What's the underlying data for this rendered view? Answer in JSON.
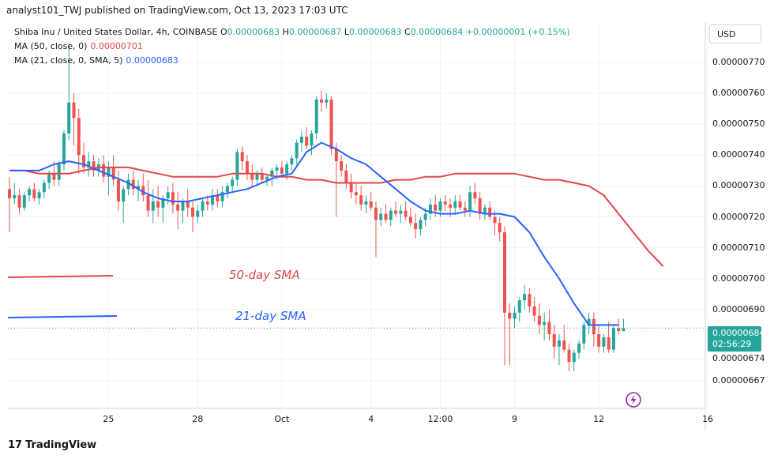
{
  "header": {
    "publish_line": "analyst101_TWJ published on TradingView.com, Oct 13, 2023 17:03 UTC"
  },
  "legend": {
    "symbol": "Shiba Inu / United States Dollar, 4h, COINBASE",
    "open_key": "O",
    "open_val": "0.00000683",
    "high_key": "H",
    "high_val": "0.00000687",
    "low_key": "L",
    "low_val": "0.00000683",
    "close_key": "C",
    "close_val": "0.00000684",
    "change": "+0.00000001 (+0.15%)",
    "ma50_label": "MA (50, close, 0)",
    "ma50_value": "0.00000701",
    "ma21_label": "MA (21, close, 0, SMA, 5)",
    "ma21_value": "0.00000683"
  },
  "currency_button": "USD",
  "last_price": {
    "price": "0.00000684",
    "countdown": "02:56:29"
  },
  "annotations": {
    "ma50": "50-day SMA",
    "ma21": "21-day SMA"
  },
  "footer": {
    "brand": "TradingView",
    "logo_mark": "17"
  },
  "colors": {
    "up": "#26a69a",
    "down": "#ef5350",
    "ma50": "#e0474c",
    "ma21": "#2962ff",
    "grid": "#f0f3fa"
  },
  "chart_data": {
    "type": "candlestick",
    "title": "Shiba Inu / United States Dollar, 4h, COINBASE",
    "y_ticks": [
      "0.00000770",
      "0.00000760",
      "0.00000750",
      "0.00000740",
      "0.00000730",
      "0.00000720",
      "0.00000710",
      "0.00000700",
      "0.00000690",
      "0.00000674",
      "0.00000667"
    ],
    "y_tick_values": [
      7.7,
      7.6,
      7.5,
      7.4,
      7.3,
      7.2,
      7.1,
      7.0,
      6.9,
      6.74,
      6.67
    ],
    "y_unit_note": "values in 1e-6 USD",
    "ylim": [
      6.63,
      7.79
    ],
    "x_ticks": [
      "25",
      "28",
      "Oct",
      "4",
      "12:00",
      "9",
      "12",
      "16"
    ],
    "x_tick_index": [
      20,
      38,
      55,
      73,
      87,
      102,
      119,
      141
    ],
    "candles": [
      [
        7.29,
        7.33,
        7.15,
        7.26
      ],
      [
        7.26,
        7.31,
        7.24,
        7.27
      ],
      [
        7.27,
        7.29,
        7.21,
        7.23
      ],
      [
        7.23,
        7.28,
        7.22,
        7.27
      ],
      [
        7.27,
        7.3,
        7.25,
        7.29
      ],
      [
        7.29,
        7.31,
        7.25,
        7.26
      ],
      [
        7.26,
        7.29,
        7.24,
        7.28
      ],
      [
        7.28,
        7.32,
        7.26,
        7.31
      ],
      [
        7.31,
        7.35,
        7.29,
        7.34
      ],
      [
        7.34,
        7.38,
        7.3,
        7.32
      ],
      [
        7.32,
        7.38,
        7.3,
        7.37
      ],
      [
        7.37,
        7.48,
        7.35,
        7.47
      ],
      [
        7.47,
        7.76,
        7.45,
        7.57
      ],
      [
        7.57,
        7.6,
        7.43,
        7.52
      ],
      [
        7.52,
        7.55,
        7.34,
        7.4
      ],
      [
        7.4,
        7.44,
        7.34,
        7.36
      ],
      [
        7.36,
        7.41,
        7.33,
        7.38
      ],
      [
        7.38,
        7.4,
        7.33,
        7.35
      ],
      [
        7.35,
        7.39,
        7.33,
        7.37
      ],
      [
        7.37,
        7.4,
        7.31,
        7.33
      ],
      [
        7.33,
        7.38,
        7.27,
        7.36
      ],
      [
        7.36,
        7.4,
        7.3,
        7.32
      ],
      [
        7.32,
        7.35,
        7.22,
        7.25
      ],
      [
        7.25,
        7.3,
        7.18,
        7.29
      ],
      [
        7.29,
        7.34,
        7.27,
        7.32
      ],
      [
        7.32,
        7.35,
        7.27,
        7.29
      ],
      [
        7.29,
        7.32,
        7.25,
        7.3
      ],
      [
        7.3,
        7.34,
        7.25,
        7.27
      ],
      [
        7.27,
        7.32,
        7.2,
        7.22
      ],
      [
        7.22,
        7.29,
        7.18,
        7.25
      ],
      [
        7.25,
        7.3,
        7.2,
        7.23
      ],
      [
        7.23,
        7.27,
        7.18,
        7.26
      ],
      [
        7.26,
        7.3,
        7.24,
        7.28
      ],
      [
        7.28,
        7.31,
        7.21,
        7.24
      ],
      [
        7.24,
        7.28,
        7.16,
        7.22
      ],
      [
        7.22,
        7.26,
        7.18,
        7.25
      ],
      [
        7.25,
        7.29,
        7.2,
        7.23
      ],
      [
        7.23,
        7.25,
        7.15,
        7.2
      ],
      [
        7.2,
        7.24,
        7.18,
        7.22
      ],
      [
        7.22,
        7.26,
        7.2,
        7.25
      ],
      [
        7.25,
        7.27,
        7.22,
        7.24
      ],
      [
        7.24,
        7.29,
        7.22,
        7.27
      ],
      [
        7.27,
        7.29,
        7.23,
        7.25
      ],
      [
        7.25,
        7.3,
        7.23,
        7.28
      ],
      [
        7.28,
        7.31,
        7.26,
        7.3
      ],
      [
        7.3,
        7.33,
        7.28,
        7.32
      ],
      [
        7.32,
        7.42,
        7.3,
        7.41
      ],
      [
        7.41,
        7.43,
        7.35,
        7.38
      ],
      [
        7.38,
        7.4,
        7.32,
        7.34
      ],
      [
        7.34,
        7.37,
        7.3,
        7.32
      ],
      [
        7.32,
        7.35,
        7.3,
        7.34
      ],
      [
        7.34,
        7.36,
        7.31,
        7.32
      ],
      [
        7.32,
        7.34,
        7.3,
        7.33
      ],
      [
        7.33,
        7.36,
        7.3,
        7.35
      ],
      [
        7.35,
        7.37,
        7.32,
        7.36
      ],
      [
        7.36,
        7.38,
        7.33,
        7.34
      ],
      [
        7.34,
        7.38,
        7.32,
        7.37
      ],
      [
        7.37,
        7.4,
        7.35,
        7.39
      ],
      [
        7.39,
        7.45,
        7.37,
        7.44
      ],
      [
        7.44,
        7.48,
        7.41,
        7.46
      ],
      [
        7.46,
        7.49,
        7.42,
        7.43
      ],
      [
        7.43,
        7.48,
        7.4,
        7.47
      ],
      [
        7.47,
        7.59,
        7.45,
        7.58
      ],
      [
        7.58,
        7.61,
        7.54,
        7.57
      ],
      [
        7.57,
        7.6,
        7.55,
        7.58
      ],
      [
        7.58,
        7.59,
        7.4,
        7.42
      ],
      [
        7.42,
        7.44,
        7.2,
        7.38
      ],
      [
        7.38,
        7.4,
        7.33,
        7.35
      ],
      [
        7.35,
        7.37,
        7.29,
        7.31
      ],
      [
        7.31,
        7.34,
        7.26,
        7.28
      ],
      [
        7.28,
        7.31,
        7.24,
        7.27
      ],
      [
        7.27,
        7.3,
        7.22,
        7.24
      ],
      [
        7.24,
        7.27,
        7.21,
        7.25
      ],
      [
        7.25,
        7.28,
        7.22,
        7.23
      ],
      [
        7.23,
        7.25,
        7.07,
        7.19
      ],
      [
        7.19,
        7.23,
        7.17,
        7.21
      ],
      [
        7.21,
        7.24,
        7.18,
        7.19
      ],
      [
        7.19,
        7.23,
        7.17,
        7.22
      ],
      [
        7.22,
        7.25,
        7.2,
        7.21
      ],
      [
        7.21,
        7.24,
        7.18,
        7.22
      ],
      [
        7.22,
        7.25,
        7.19,
        7.2
      ],
      [
        7.2,
        7.23,
        7.17,
        7.18
      ],
      [
        7.18,
        7.21,
        7.13,
        7.16
      ],
      [
        7.16,
        7.2,
        7.14,
        7.19
      ],
      [
        7.19,
        7.23,
        7.17,
        7.21
      ],
      [
        7.21,
        7.26,
        7.19,
        7.24
      ],
      [
        7.24,
        7.27,
        7.2,
        7.22
      ],
      [
        7.22,
        7.26,
        7.2,
        7.25
      ],
      [
        7.25,
        7.27,
        7.22,
        7.24
      ],
      [
        7.24,
        7.26,
        7.2,
        7.23
      ],
      [
        7.23,
        7.27,
        7.21,
        7.25
      ],
      [
        7.25,
        7.27,
        7.22,
        7.23
      ],
      [
        7.23,
        7.25,
        7.2,
        7.22
      ],
      [
        7.22,
        7.3,
        7.2,
        7.28
      ],
      [
        7.28,
        7.31,
        7.24,
        7.26
      ],
      [
        7.26,
        7.28,
        7.19,
        7.21
      ],
      [
        7.21,
        7.24,
        7.19,
        7.23
      ],
      [
        7.23,
        7.25,
        7.19,
        7.2
      ],
      [
        7.2,
        7.22,
        7.14,
        7.18
      ],
      [
        7.18,
        7.2,
        7.12,
        7.15
      ],
      [
        7.15,
        7.17,
        6.72,
        6.89
      ],
      [
        6.89,
        6.92,
        6.72,
        6.87
      ],
      [
        6.87,
        6.91,
        6.84,
        6.89
      ],
      [
        6.89,
        6.94,
        6.86,
        6.93
      ],
      [
        6.93,
        6.98,
        6.9,
        6.95
      ],
      [
        6.95,
        6.97,
        6.89,
        6.91
      ],
      [
        6.91,
        6.94,
        6.86,
        6.88
      ],
      [
        6.88,
        6.92,
        6.82,
        6.85
      ],
      [
        6.85,
        6.89,
        6.8,
        6.86
      ],
      [
        6.86,
        6.9,
        6.8,
        6.82
      ],
      [
        6.82,
        6.85,
        6.74,
        6.78
      ],
      [
        6.78,
        6.82,
        6.72,
        6.8
      ],
      [
        6.8,
        6.85,
        6.76,
        6.77
      ],
      [
        6.77,
        6.79,
        6.7,
        6.73
      ],
      [
        6.73,
        6.77,
        6.7,
        6.76
      ],
      [
        6.76,
        6.8,
        6.74,
        6.79
      ],
      [
        6.79,
        6.86,
        6.77,
        6.85
      ],
      [
        6.85,
        6.89,
        6.82,
        6.87
      ],
      [
        6.87,
        6.89,
        6.78,
        6.82
      ],
      [
        6.82,
        6.85,
        6.76,
        6.78
      ],
      [
        6.78,
        6.82,
        6.76,
        6.81
      ],
      [
        6.81,
        6.86,
        6.76,
        6.77
      ],
      [
        6.77,
        6.85,
        6.76,
        6.84
      ],
      [
        6.84,
        6.87,
        6.82,
        6.83
      ],
      [
        6.83,
        6.87,
        6.83,
        6.84
      ]
    ],
    "ma50": [
      7.35,
      7.35,
      7.34,
      7.34,
      7.34,
      7.35,
      7.36,
      7.36,
      7.36,
      7.35,
      7.34,
      7.33,
      7.33,
      7.33,
      7.33,
      7.34,
      7.34,
      7.34,
      7.33,
      7.33,
      7.32,
      7.32,
      7.31,
      7.31,
      7.31,
      7.31,
      7.32,
      7.32,
      7.33,
      7.33,
      7.34,
      7.34,
      7.34,
      7.34,
      7.34,
      7.33,
      7.32,
      7.32,
      7.31,
      7.3,
      7.27,
      7.21,
      7.15,
      7.09,
      7.04
    ],
    "ma21": [
      7.35,
      7.35,
      7.35,
      7.37,
      7.38,
      7.37,
      7.35,
      7.33,
      7.31,
      7.28,
      7.26,
      7.25,
      7.25,
      7.26,
      7.27,
      7.28,
      7.29,
      7.31,
      7.33,
      7.34,
      7.41,
      7.44,
      7.42,
      7.39,
      7.37,
      7.33,
      7.29,
      7.25,
      7.22,
      7.21,
      7.21,
      7.22,
      7.21,
      7.21,
      7.2,
      7.15,
      7.07,
      7.0,
      6.92,
      6.85,
      6.85,
      6.85
    ]
  }
}
